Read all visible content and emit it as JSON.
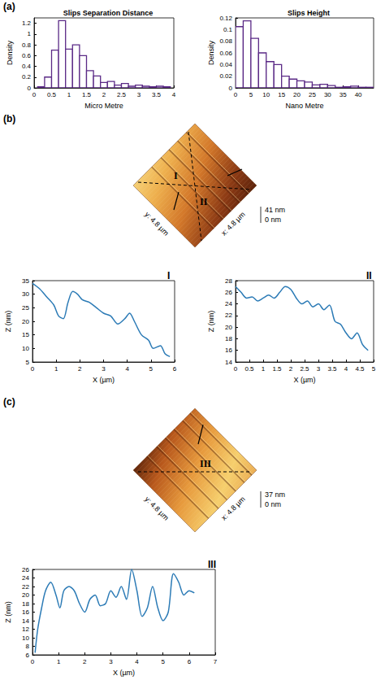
{
  "panel_labels": [
    "(a)",
    "(b)",
    "(c)"
  ],
  "chart_data": [
    {
      "type": "histogram",
      "title": "Slips Separation Distance",
      "x_label": "Micro Metre",
      "y_label": "Density",
      "bins": [
        0.1,
        0.3,
        0.5,
        0.7,
        0.9,
        1.1,
        1.3,
        1.5,
        1.7,
        1.9,
        2.1,
        2.3,
        2.5,
        2.7,
        2.9,
        3.1,
        3.3,
        3.5,
        3.7,
        3.9
      ],
      "values": [
        0.02,
        0.2,
        0.7,
        1.25,
        0.72,
        0.8,
        0.6,
        0.32,
        0.22,
        0.1,
        0.12,
        0.05,
        0.08,
        0.03,
        0.05,
        0.03,
        0.02,
        0.03,
        0.02
      ],
      "color": "#5b2a86",
      "xlim": [
        0,
        4
      ],
      "xticks": [
        0,
        0.5,
        1,
        1.5,
        2,
        2.5,
        3,
        3.5,
        4
      ],
      "ylim": [
        0,
        1.3
      ],
      "yticks": [
        0,
        0.2,
        0.4,
        0.6,
        0.8,
        1,
        1.2
      ],
      "grid": false
    },
    {
      "type": "histogram",
      "title": "Slips Height",
      "x_label": "Nano Metre",
      "y_label": "Density",
      "bins": [
        0,
        2.5,
        5,
        7.5,
        10,
        12.5,
        15,
        17.5,
        20,
        22.5,
        25,
        27.5,
        30,
        32.5,
        35,
        37.5,
        40,
        42.5,
        45
      ],
      "values": [
        0.105,
        0.115,
        0.085,
        0.06,
        0.045,
        0.04,
        0.02,
        0.015,
        0.012,
        0.01,
        0.005,
        0.006,
        0.004,
        0.001,
        0.002,
        0.003,
        0.001,
        0.001
      ],
      "color": "#5b2a86",
      "xlim": [
        0,
        45
      ],
      "xticks": [
        0,
        5,
        10,
        15,
        20,
        25,
        30,
        35,
        40
      ],
      "ylim": [
        0,
        0.12
      ],
      "yticks": [
        0,
        0.02,
        0.04,
        0.06,
        0.08,
        0.1,
        0.12
      ],
      "grid": false
    },
    {
      "type": "line",
      "title": "I",
      "x_label": "X (µm)",
      "y_label": "Z (nm)",
      "x": [
        0,
        0.3,
        0.6,
        0.9,
        1.1,
        1.3,
        1.5,
        1.7,
        1.9,
        2.1,
        2.4,
        2.7,
        3,
        3.3,
        3.6,
        3.9,
        4.1,
        4.3,
        4.6,
        4.9,
        5.1,
        5.4,
        5.6,
        5.8
      ],
      "values": [
        34,
        32,
        29,
        26,
        22,
        21,
        27,
        31,
        30,
        28,
        27,
        25,
        23,
        22,
        19,
        21,
        23,
        20,
        15,
        13,
        10,
        11,
        8,
        7
      ],
      "color": "#2c7bb6",
      "xlim": [
        0,
        6
      ],
      "xticks": [
        0,
        1,
        2,
        3,
        4,
        5,
        6
      ],
      "ylim": [
        5,
        35
      ],
      "yticks": [
        5,
        10,
        15,
        20,
        25,
        30,
        35
      ],
      "grid": false
    },
    {
      "type": "line",
      "title": "II",
      "x_label": "X (µm)",
      "y_label": "Z (nm)",
      "x": [
        0,
        0.2,
        0.4,
        0.6,
        0.8,
        1,
        1.2,
        1.4,
        1.6,
        1.8,
        2,
        2.2,
        2.4,
        2.6,
        2.8,
        3,
        3.2,
        3.4,
        3.6,
        3.8,
        4,
        4.2,
        4.4,
        4.6,
        4.8
      ],
      "values": [
        27,
        26,
        25,
        25.2,
        24.5,
        25,
        25.5,
        25,
        26,
        27,
        26.5,
        25,
        24,
        24.5,
        23.5,
        24,
        23,
        23.8,
        21,
        20.5,
        19,
        18,
        19,
        17,
        16
      ],
      "color": "#2c7bb6",
      "xlim": [
        0,
        5
      ],
      "xticks": [
        0,
        0.5,
        1,
        1.5,
        2,
        2.5,
        3,
        3.5,
        4,
        4.5,
        5
      ],
      "ylim": [
        14,
        28
      ],
      "yticks": [
        14,
        16,
        18,
        20,
        22,
        24,
        26,
        28
      ],
      "grid": false
    },
    {
      "type": "line",
      "title": "III",
      "x_label": "X (µm)",
      "y_label": "Z (nm)",
      "x": [
        0.1,
        0.2,
        0.35,
        0.5,
        0.7,
        0.9,
        1.05,
        1.2,
        1.4,
        1.6,
        1.8,
        2,
        2.2,
        2.4,
        2.6,
        2.8,
        3,
        3.2,
        3.4,
        3.6,
        3.8,
        4,
        4.2,
        4.4,
        4.6,
        4.8,
        5,
        5.2,
        5.4,
        5.6,
        5.8,
        6,
        6.2
      ],
      "values": [
        6.5,
        12,
        17,
        21,
        23,
        20,
        17,
        21,
        22,
        21,
        18,
        16,
        19,
        20,
        17.5,
        18,
        21,
        19.5,
        22,
        19,
        26,
        21,
        15,
        17,
        22,
        17,
        14,
        16,
        25,
        23,
        20,
        21,
        20.5
      ],
      "color": "#2c7bb6",
      "xlim": [
        0,
        7
      ],
      "xticks": [
        0,
        1,
        2,
        3,
        4,
        5,
        6,
        7
      ],
      "ylim": [
        6,
        26
      ],
      "yticks": [
        6,
        8,
        10,
        12,
        14,
        16,
        18,
        20,
        22,
        24,
        26
      ],
      "grid": false
    }
  ],
  "afm_images": [
    {
      "x_label": "x: 4.8 µm",
      "y_label": "y: 4.8 µm",
      "z_max_label": "41 nm",
      "z_min_label": "0 nm",
      "line_labels": [
        "I",
        "II"
      ]
    },
    {
      "x_label": "x: 4.8 µm",
      "y_label": "y: 4.8 µm",
      "z_max_label": "37 nm",
      "z_min_label": "0 nm",
      "line_labels": [
        "III"
      ]
    }
  ]
}
